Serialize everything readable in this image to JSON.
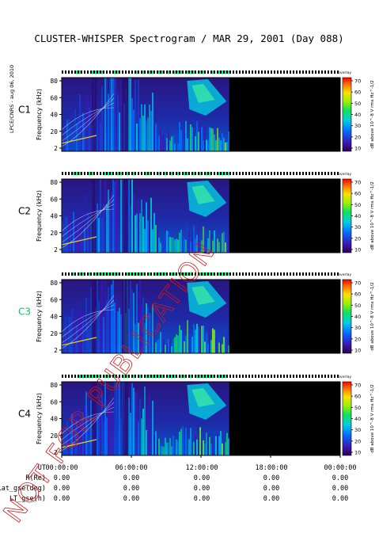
{
  "page": {
    "title": "CLUSTER-WHISPER Spectrogram / MAR 29, 2001 (Day 088)",
    "side_credit": "LPCE/CNRS - aug 06, 2010",
    "watermark": "NOT FOR PUBLICATION"
  },
  "colors": {
    "background": "#ffffff",
    "data_gap": "#000000",
    "watermark": "#d21a1a",
    "c3_label": "#1fbf5a",
    "mode_bar_on": "#00ff66"
  },
  "chart_data": [
    {
      "type": "heatmap",
      "spacecraft": "C1",
      "ylabel": "Frequency (kHz)",
      "yticks": [
        "80",
        "60",
        "40",
        "20",
        "2"
      ],
      "ylim": [
        2,
        80
      ],
      "xlim_hours": [
        0,
        24
      ],
      "data_until_hours": 14.4,
      "colorbar_label": "dB above 10^-8 V rms Hz^-1/2",
      "colorbar_ticks": [
        "70",
        "60",
        "50",
        "40",
        "30",
        "20",
        "10"
      ],
      "colorbar_header": "overlay",
      "label_color": "#000000"
    },
    {
      "type": "heatmap",
      "spacecraft": "C2",
      "ylabel": "Frequency (kHz)",
      "yticks": [
        "80",
        "60",
        "40",
        "20",
        "2"
      ],
      "ylim": [
        2,
        80
      ],
      "xlim_hours": [
        0,
        24
      ],
      "data_until_hours": 14.4,
      "colorbar_label": "dB above 10^-8 V rms Hz^-1/2",
      "colorbar_ticks": [
        "70",
        "60",
        "50",
        "40",
        "30",
        "20",
        "10"
      ],
      "colorbar_header": "overlay",
      "label_color": "#000000"
    },
    {
      "type": "heatmap",
      "spacecraft": "C3",
      "ylabel": "Frequency (kHz)",
      "yticks": [
        "80",
        "60",
        "40",
        "20",
        "2"
      ],
      "ylim": [
        2,
        80
      ],
      "xlim_hours": [
        0,
        24
      ],
      "data_until_hours": 14.4,
      "colorbar_label": "dB above 10^-8 V rms Hz^-1/2",
      "colorbar_ticks": [
        "70",
        "60",
        "50",
        "40",
        "30",
        "20",
        "10"
      ],
      "colorbar_header": "overlay",
      "label_color": "#1fbf5a"
    },
    {
      "type": "heatmap",
      "spacecraft": "C4",
      "ylabel": "Frequency (kHz)",
      "yticks": [
        "80",
        "60",
        "40",
        "20",
        "2"
      ],
      "ylim": [
        2,
        80
      ],
      "xlim_hours": [
        0,
        24
      ],
      "data_until_hours": 14.4,
      "colorbar_label": "dB above 10^-8 V rms Hz^-1/2",
      "colorbar_ticks": [
        "70",
        "60",
        "50",
        "40",
        "30",
        "20",
        "10"
      ],
      "colorbar_header": "overlay",
      "label_color": "#000000"
    }
  ],
  "time_axis": {
    "row_labels": [
      "UT",
      "R(Re)",
      "Lat_gse(deg)",
      "LT_gse(h)"
    ],
    "ut_ticks": [
      "00:00:00",
      "06:00:00",
      "12:00:00",
      "18:00:00",
      "00:00:00"
    ],
    "ephemeris_rows": [
      [
        "0.00",
        "0.00",
        "0.00",
        "0.00",
        "0.00"
      ],
      [
        "0.00",
        "0.00",
        "0.00",
        "0.00",
        "0.00"
      ],
      [
        "0.00",
        "0.00",
        "0.00",
        "0.00",
        "0.00"
      ]
    ]
  }
}
